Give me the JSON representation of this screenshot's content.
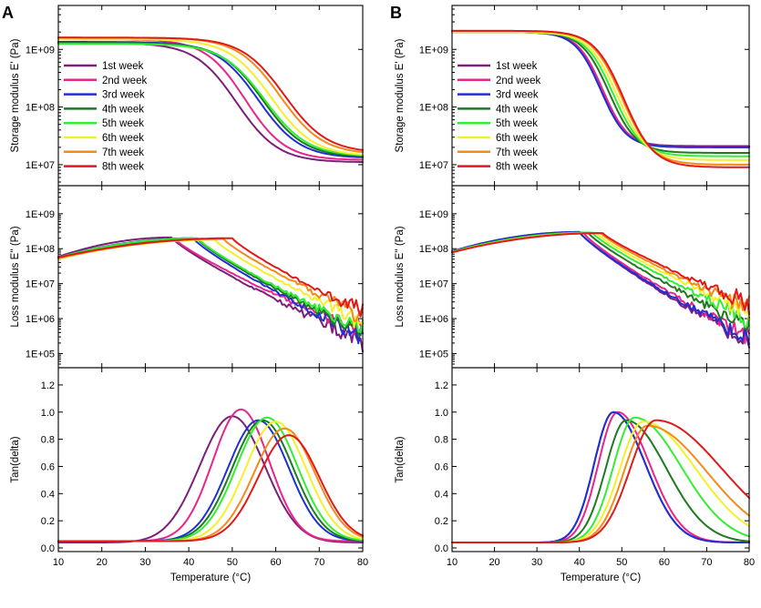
{
  "panels": [
    {
      "letter": "A"
    },
    {
      "letter": "B"
    }
  ],
  "chart_data": {
    "type": "line",
    "xlabel": "Temperature (°C)",
    "xlim": [
      10,
      80
    ],
    "xticks": [
      10,
      20,
      30,
      40,
      50,
      60,
      70,
      80
    ],
    "legend": {
      "entries": [
        "1st week",
        "2nd week",
        "3rd week",
        "4th week",
        "5th week",
        "6th week",
        "7th week",
        "8th week"
      ],
      "placement": "left, top subplot"
    },
    "series_colors": [
      "#7b1f7b",
      "#e8258a",
      "#1f2fd6",
      "#1e7a1e",
      "#33ee33",
      "#f5ef2a",
      "#f58a1a",
      "#e01a1a"
    ],
    "rows": [
      {
        "ylabel": "Storage modulus E' (Pa)",
        "scale": "log",
        "ylim": [
          5000000,
          5000000000
        ],
        "yticks": [
          10000000,
          100000000,
          1000000000
        ],
        "ytick_labels": [
          "1E+07",
          "1E+08",
          "1E+09"
        ]
      },
      {
        "ylabel": "Loss modulus E'' (Pa)",
        "scale": "log",
        "ylim": [
          50000,
          5000000000
        ],
        "yticks": [
          100000,
          1000000,
          10000000,
          100000000,
          1000000000
        ],
        "ytick_labels": [
          "1E+05",
          "1E+06",
          "1E+07",
          "1E+08",
          "1E+09"
        ]
      },
      {
        "ylabel": "Tan(delta)",
        "scale": "linear",
        "ylim": [
          0,
          1.3
        ],
        "yticks": [
          0.0,
          0.2,
          0.4,
          0.6,
          0.8,
          1.0,
          1.2
        ],
        "ytick_labels": [
          "0.0",
          "0.2",
          "0.4",
          "0.6",
          "0.8",
          "1.0",
          "1.2"
        ]
      }
    ],
    "series_params": {
      "A": [
        {
          "name": "1st week",
          "Eg": 1300000000.0,
          "Er": 11000000.0,
          "Tm": 51,
          "w": 4.8,
          "Epp_peak": 210000000.0,
          "Tp": 36,
          "Epp_end": 220000.0,
          "tan_peak": 0.97,
          "Tt": 50,
          "tw": 7.5,
          "base": 0.04
        },
        {
          "name": "2nd week",
          "Eg": 1500000000.0,
          "Er": 12000000.0,
          "Tm": 53,
          "w": 4.6,
          "Epp_peak": 180000000.0,
          "Tp": 37,
          "Epp_end": 400000.0,
          "tan_peak": 1.02,
          "Tt": 52,
          "tw": 6.5,
          "base": 0.05
        },
        {
          "name": "3rd week",
          "Eg": 1350000000.0,
          "Er": 13000000.0,
          "Tm": 56,
          "w": 4.8,
          "Epp_peak": 200000000.0,
          "Tp": 41,
          "Epp_end": 300000.0,
          "tan_peak": 0.94,
          "Tt": 56,
          "tw": 7.0,
          "base": 0.05
        },
        {
          "name": "4th week",
          "Eg": 1300000000.0,
          "Er": 13500000.0,
          "Tm": 57,
          "w": 4.8,
          "Epp_peak": 190000000.0,
          "Tp": 42,
          "Epp_end": 400000.0,
          "tan_peak": 0.94,
          "Tt": 57,
          "tw": 7.0,
          "base": 0.05
        },
        {
          "name": "5th week",
          "Eg": 1250000000.0,
          "Er": 14000000.0,
          "Tm": 57.5,
          "w": 4.9,
          "Epp_peak": 200000000.0,
          "Tp": 42,
          "Epp_end": 500000.0,
          "tan_peak": 0.96,
          "Tt": 58,
          "tw": 7.0,
          "base": 0.05
        },
        {
          "name": "6th week",
          "Eg": 1500000000.0,
          "Er": 14000000.0,
          "Tm": 59,
          "w": 4.9,
          "Epp_peak": 180000000.0,
          "Tp": 46,
          "Epp_end": 800000.0,
          "tan_peak": 0.93,
          "Tt": 60,
          "tw": 7.0,
          "base": 0.05
        },
        {
          "name": "7th week",
          "Eg": 1600000000.0,
          "Er": 15000000.0,
          "Tm": 61,
          "w": 4.9,
          "Epp_peak": 190000000.0,
          "Tp": 48,
          "Epp_end": 1200000.0,
          "tan_peak": 0.88,
          "Tt": 62,
          "tw": 7.0,
          "base": 0.05
        },
        {
          "name": "8th week",
          "Eg": 1600000000.0,
          "Er": 16000000.0,
          "Tm": 62,
          "w": 4.9,
          "Epp_peak": 200000000.0,
          "Tp": 50,
          "Epp_end": 1500000.0,
          "tan_peak": 0.83,
          "Tt": 63,
          "tw": 7.0,
          "base": 0.05
        }
      ],
      "B": [
        {
          "name": "1st week",
          "Eg": 2000000000.0,
          "Er": 21000000.0,
          "Tm": 45,
          "w": 3.0,
          "Epp_peak": 300000000.0,
          "Tp": 40,
          "Epp_end": 200000.0,
          "tan_peak": 1.0,
          "Tt": 48,
          "tw": 4.5,
          "tw2": 7.5,
          "base": 0.04
        },
        {
          "name": "2nd week",
          "Eg": 2000000000.0,
          "Er": 20000000.0,
          "Tm": 45.5,
          "w": 3.0,
          "Epp_peak": 280000000.0,
          "Tp": 41,
          "Epp_end": 300000.0,
          "tan_peak": 1.0,
          "Tt": 49,
          "tw": 4.5,
          "tw2": 7.5,
          "base": 0.04
        },
        {
          "name": "3rd week",
          "Eg": 2000000000.0,
          "Er": 20000000.0,
          "Tm": 45,
          "w": 3.0,
          "Epp_peak": 300000000.0,
          "Tp": 40,
          "Epp_end": 250000.0,
          "tan_peak": 1.0,
          "Tt": 48,
          "tw": 4.5,
          "tw2": 7.5,
          "base": 0.04
        },
        {
          "name": "4th week",
          "Eg": 2000000000.0,
          "Er": 16000000.0,
          "Tm": 47,
          "w": 3.2,
          "Epp_peak": 290000000.0,
          "Tp": 42,
          "Epp_end": 600000.0,
          "tan_peak": 0.94,
          "Tt": 51,
          "tw": 4.8,
          "tw2": 9.5,
          "base": 0.04
        },
        {
          "name": "5th week",
          "Eg": 2000000000.0,
          "Er": 14000000.0,
          "Tm": 48,
          "w": 3.3,
          "Epp_peak": 290000000.0,
          "Tp": 43,
          "Epp_end": 1000000.0,
          "tan_peak": 0.96,
          "Tt": 53,
          "tw": 5.0,
          "tw2": 11.0,
          "base": 0.04
        },
        {
          "name": "6th week",
          "Eg": 2000000000.0,
          "Er": 12000000.0,
          "Tm": 49,
          "w": 3.4,
          "Epp_peak": 280000000.0,
          "Tp": 44,
          "Epp_end": 1500000.0,
          "tan_peak": 0.93,
          "Tt": 55,
          "tw": 5.5,
          "tw2": 12.5,
          "base": 0.04
        },
        {
          "name": "7th week",
          "Eg": 2100000000.0,
          "Er": 10000000.0,
          "Tm": 50,
          "w": 3.5,
          "Epp_peak": 280000000.0,
          "Tp": 45,
          "Epp_end": 2000000.0,
          "tan_peak": 0.9,
          "Tt": 56,
          "tw": 5.5,
          "tw2": 14.0,
          "base": 0.04
        },
        {
          "name": "8th week",
          "Eg": 2100000000.0,
          "Er": 9000000.0,
          "Tm": 50.5,
          "w": 3.5,
          "Epp_peak": 280000000.0,
          "Tp": 45.5,
          "Epp_end": 2800000.0,
          "tan_peak": 0.94,
          "Tt": 58,
          "tw": 6.0,
          "tw2": 15.5,
          "base": 0.04
        }
      ]
    }
  }
}
